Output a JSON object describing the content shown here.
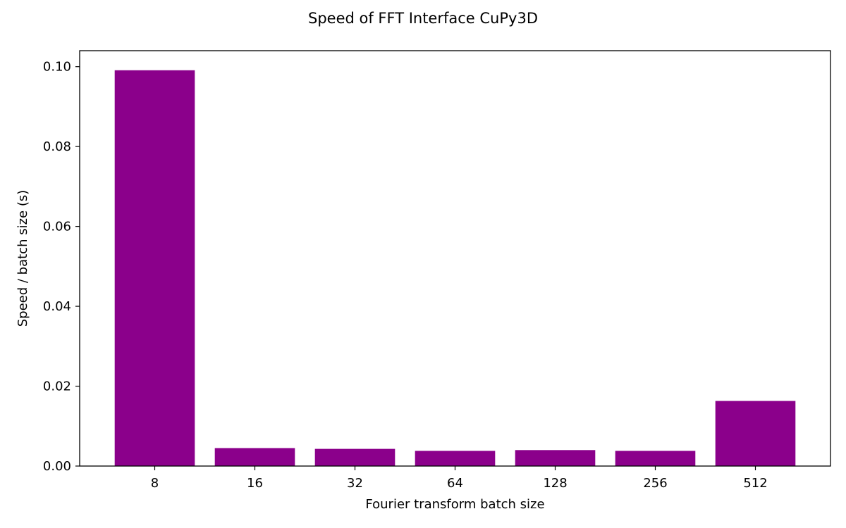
{
  "chart_data": {
    "type": "bar",
    "title": "Speed of FFT Interface CuPy3D",
    "xlabel": "Fourier transform batch size",
    "ylabel": "Speed / batch size (s)",
    "categories": [
      "8",
      "16",
      "32",
      "64",
      "128",
      "256",
      "512"
    ],
    "values": [
      0.0991,
      0.0045,
      0.0043,
      0.0038,
      0.004,
      0.0038,
      0.0163
    ],
    "ylim": [
      0,
      0.104
    ],
    "yticks": [
      0.0,
      0.02,
      0.04,
      0.06,
      0.08,
      0.1
    ],
    "ytick_labels": [
      "0.00",
      "0.02",
      "0.04",
      "0.06",
      "0.08",
      "0.10"
    ],
    "grid": false,
    "bar_color": "#8b008b"
  }
}
